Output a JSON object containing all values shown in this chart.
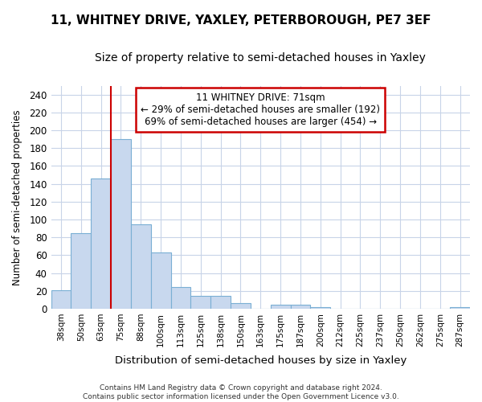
{
  "title": "11, WHITNEY DRIVE, YAXLEY, PETERBOROUGH, PE7 3EF",
  "subtitle": "Size of property relative to semi-detached houses in Yaxley",
  "xlabel": "Distribution of semi-detached houses by size in Yaxley",
  "ylabel": "Number of semi-detached properties",
  "categories": [
    "38sqm",
    "50sqm",
    "63sqm",
    "75sqm",
    "88sqm",
    "100sqm",
    "113sqm",
    "125sqm",
    "138sqm",
    "150sqm",
    "163sqm",
    "175sqm",
    "187sqm",
    "200sqm",
    "212sqm",
    "225sqm",
    "237sqm",
    "250sqm",
    "262sqm",
    "275sqm",
    "287sqm"
  ],
  "values": [
    21,
    85,
    146,
    190,
    95,
    63,
    24,
    14,
    14,
    6,
    0,
    4,
    4,
    2,
    0,
    0,
    0,
    0,
    0,
    0,
    2
  ],
  "bar_color": "#c8d8ee",
  "bar_edge_color": "#7aafd4",
  "vline_x_idx": 3,
  "vline_color": "#cc0000",
  "annotation_text": "11 WHITNEY DRIVE: 71sqm\n← 29% of semi-detached houses are smaller (192)\n69% of semi-detached houses are larger (454) →",
  "annotation_box_color": "#ffffff",
  "annotation_box_edge": "#cc0000",
  "ylim": [
    0,
    250
  ],
  "yticks": [
    0,
    20,
    40,
    60,
    80,
    100,
    120,
    140,
    160,
    180,
    200,
    220,
    240
  ],
  "footnote": "Contains HM Land Registry data © Crown copyright and database right 2024.\nContains public sector information licensed under the Open Government Licence v3.0.",
  "bg_color": "#ffffff",
  "plot_bg_color": "#ffffff",
  "grid_color": "#c8d4e8",
  "title_fontsize": 11,
  "subtitle_fontsize": 10
}
